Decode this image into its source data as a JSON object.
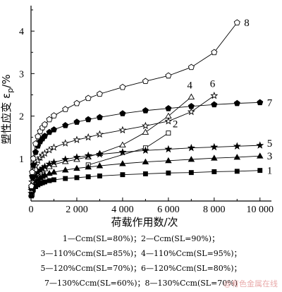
{
  "chart_data": {
    "type": "line",
    "ylabel": "塑性应变 εp/%",
    "xlabel": "荷载作用数/次",
    "xlim": [
      0,
      10500
    ],
    "ylim": [
      0,
      4.6
    ],
    "xticks": [
      0,
      2000,
      4000,
      6000,
      8000,
      10000
    ],
    "xtick_labels": [
      "0",
      "2 000",
      "4 000",
      "6 000",
      "8 000",
      "10 000"
    ],
    "yticks": [
      1,
      2,
      3,
      4
    ],
    "ytick_labels": [
      "1",
      "2",
      "3",
      "4"
    ],
    "grid": false,
    "series": [
      {
        "name": "1",
        "marker": "filled-square",
        "x": [
          20,
          50,
          100,
          200,
          300,
          400,
          500,
          600,
          800,
          1000,
          1500,
          2000,
          2500,
          3000,
          4000,
          5000,
          6000,
          7000,
          8000,
          9000,
          10000
        ],
        "y": [
          0.12,
          0.2,
          0.27,
          0.34,
          0.38,
          0.41,
          0.43,
          0.45,
          0.48,
          0.5,
          0.53,
          0.55,
          0.57,
          0.59,
          0.62,
          0.64,
          0.66,
          0.67,
          0.69,
          0.7,
          0.72
        ]
      },
      {
        "name": "2",
        "marker": "open-square",
        "x": [
          2500,
          5000,
          6000
        ],
        "y": [
          0.85,
          1.25,
          1.6
        ]
      },
      {
        "name": "3",
        "marker": "filled-triangle",
        "x": [
          20,
          50,
          100,
          200,
          300,
          400,
          500,
          600,
          800,
          1000,
          1500,
          2000,
          2500,
          3000,
          4000,
          5000,
          6000,
          7000,
          8000,
          9000,
          10000
        ],
        "y": [
          0.15,
          0.25,
          0.35,
          0.45,
          0.51,
          0.55,
          0.58,
          0.61,
          0.65,
          0.68,
          0.73,
          0.77,
          0.8,
          0.83,
          0.88,
          0.92,
          0.95,
          0.98,
          1.01,
          1.03,
          1.06
        ]
      },
      {
        "name": "4",
        "marker": "open-triangle",
        "x": [
          20,
          50,
          100,
          200,
          300,
          400,
          500,
          600,
          800,
          1000,
          1500,
          2000,
          2500,
          3000,
          4000,
          5000,
          6000,
          7000
        ],
        "y": [
          0.18,
          0.32,
          0.45,
          0.57,
          0.64,
          0.69,
          0.73,
          0.76,
          0.81,
          0.86,
          0.93,
          0.98,
          1.04,
          1.12,
          1.32,
          1.62,
          2.0,
          2.45
        ]
      },
      {
        "name": "5",
        "marker": "filled-star",
        "x": [
          20,
          50,
          100,
          200,
          300,
          400,
          500,
          600,
          800,
          1000,
          1500,
          2000,
          2500,
          3000,
          4000,
          5000,
          6000,
          7000,
          8000,
          9000,
          10000
        ],
        "y": [
          0.18,
          0.31,
          0.44,
          0.58,
          0.67,
          0.73,
          0.77,
          0.81,
          0.87,
          0.91,
          0.98,
          1.03,
          1.07,
          1.1,
          1.15,
          1.19,
          1.22,
          1.25,
          1.27,
          1.29,
          1.31
        ]
      },
      {
        "name": "6",
        "marker": "open-star",
        "x": [
          20,
          50,
          100,
          200,
          300,
          400,
          500,
          600,
          800,
          1000,
          1500,
          2000,
          2500,
          3000,
          4000,
          5000,
          6000,
          7000,
          8000
        ],
        "y": [
          0.25,
          0.45,
          0.63,
          0.83,
          0.95,
          1.02,
          1.08,
          1.12,
          1.2,
          1.26,
          1.36,
          1.44,
          1.5,
          1.57,
          1.67,
          1.77,
          1.88,
          2.1,
          2.48
        ]
      },
      {
        "name": "7",
        "marker": "filled-pentagon",
        "x": [
          20,
          50,
          100,
          200,
          300,
          400,
          500,
          600,
          800,
          1000,
          1500,
          2000,
          2500,
          3000,
          4000,
          5000,
          6000,
          7000,
          8000,
          9000,
          10000
        ],
        "y": [
          0.3,
          0.58,
          0.85,
          1.15,
          1.3,
          1.4,
          1.47,
          1.53,
          1.62,
          1.68,
          1.78,
          1.86,
          1.92,
          1.97,
          2.06,
          2.13,
          2.18,
          2.23,
          2.27,
          2.3,
          2.32
        ]
      },
      {
        "name": "8",
        "marker": "open-pentagon",
        "x": [
          20,
          50,
          100,
          200,
          300,
          400,
          500,
          600,
          800,
          1000,
          1500,
          2000,
          2500,
          3000,
          4000,
          5000,
          6000,
          7000,
          8000,
          9000
        ],
        "y": [
          0.35,
          0.68,
          1.0,
          1.35,
          1.52,
          1.64,
          1.73,
          1.8,
          1.92,
          2.01,
          2.16,
          2.3,
          2.42,
          2.52,
          2.68,
          2.82,
          2.95,
          3.15,
          3.5,
          4.2
        ]
      }
    ],
    "curve_labels": [
      "1",
      "2",
      "3",
      "4",
      "5",
      "6",
      "7",
      "8"
    ]
  },
  "legend": {
    "rows": [
      "1—Ccm(SL=80%)；2—Ccm(SL=90%)；",
      "3—110%Ccm(SL=85%)；4—110%Ccm(SL=95%)；",
      "5—120%Ccm(SL=70%)；6—120%Ccm(SL=80%)；",
      "7—130%Ccm(SL=60%)；8—130%Ccm(SL=70%)"
    ]
  },
  "watermark": "@有色金属在线"
}
